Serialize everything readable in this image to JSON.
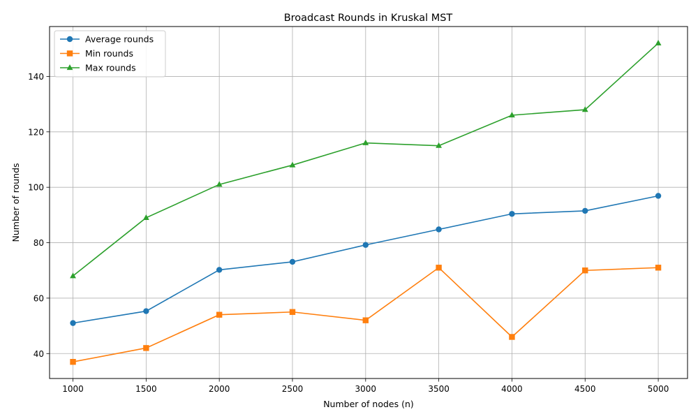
{
  "chart_data": {
    "type": "line",
    "title": "Broadcast Rounds in Kruskal MST",
    "xlabel": "Number of nodes (n)",
    "ylabel": "Number of rounds",
    "x": [
      1000,
      1500,
      2000,
      2500,
      3000,
      3500,
      4000,
      4500,
      5000
    ],
    "xticks": [
      "1000",
      "1500",
      "2000",
      "2500",
      "3000",
      "3500",
      "4000",
      "4500",
      "5000"
    ],
    "yticks": [
      "40",
      "60",
      "80",
      "100",
      "120",
      "140"
    ],
    "xlim": [
      840,
      5200
    ],
    "ylim": [
      31,
      158
    ],
    "grid": true,
    "legend_position": "top-left",
    "series": [
      {
        "name": "Average rounds",
        "color": "#1f77b4",
        "marker": "circle",
        "values": [
          51.0,
          55.3,
          70.2,
          73.1,
          79.2,
          84.8,
          90.4,
          91.5,
          96.9
        ]
      },
      {
        "name": "Min rounds",
        "color": "#ff7f0e",
        "marker": "square",
        "values": [
          37,
          42,
          54,
          55,
          52,
          71,
          46,
          70,
          71
        ]
      },
      {
        "name": "Max rounds",
        "color": "#2ca02c",
        "marker": "triangle",
        "values": [
          68,
          89,
          101,
          108,
          116,
          115,
          126,
          128,
          152
        ]
      }
    ]
  }
}
